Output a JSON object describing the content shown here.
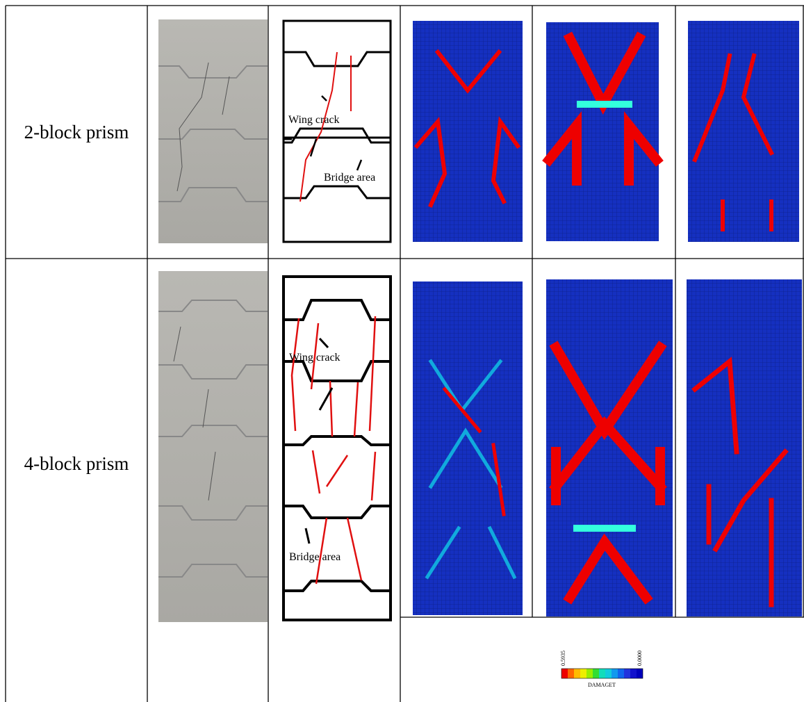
{
  "table": {
    "rows": [
      {
        "label": "2-block prism",
        "sketch_labels": [
          "Wing crack",
          "Bridge area"
        ]
      },
      {
        "label": "4-block prism",
        "sketch_labels": [
          "Wing crack",
          "Bridge area"
        ]
      }
    ]
  },
  "legend": {
    "max": "0.5935",
    "min": "0.0000",
    "title": "DAMAGET"
  }
}
